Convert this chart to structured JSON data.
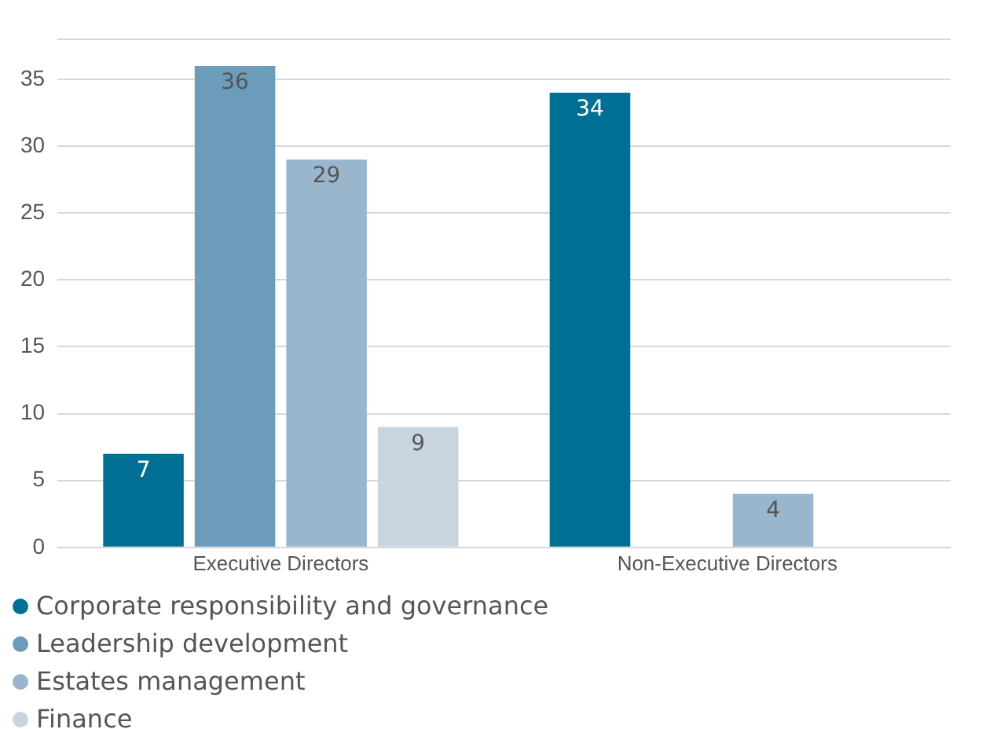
{
  "chart_data": {
    "type": "bar",
    "categories": [
      "Executive Directors",
      "Non-Executive Directors"
    ],
    "series": [
      {
        "name": "Corporate responsibility and governance",
        "color": "#006f94",
        "values": [
          7,
          34
        ]
      },
      {
        "name": "Leadership development",
        "color": "#6b9dbb",
        "values": [
          36,
          null
        ]
      },
      {
        "name": "Estates management",
        "color": "#99b6cd",
        "values": [
          29,
          4
        ]
      },
      {
        "name": "Finance",
        "color": "#c8d5e1",
        "values": [
          9,
          null
        ]
      }
    ],
    "ylim": [
      0,
      38
    ],
    "yticks": [
      0,
      5,
      10,
      15,
      20,
      25,
      30,
      35,
      {
        "value": 38,
        "label": null
      }
    ],
    "grid": "y",
    "legend": "bottom left",
    "data_labels": true
  }
}
